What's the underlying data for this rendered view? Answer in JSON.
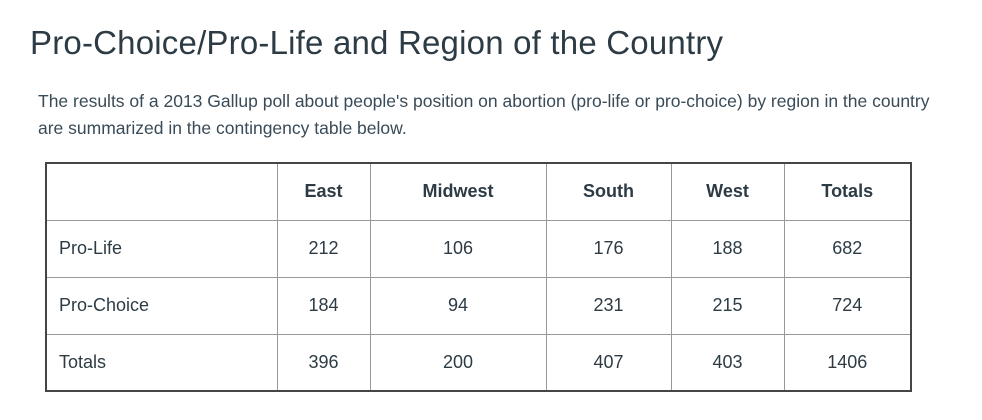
{
  "page": {
    "title": "Pro-Choice/Pro-Life and Region of the Country",
    "description": "The results of a 2013 Gallup poll about people's position on abortion (pro-life or pro-choice) by region in the country are summarized in the contingency table below."
  },
  "colors": {
    "heading": "#2D3B45",
    "body_text": "#394B58",
    "table_text": "#2D3B45",
    "table_outer_border": "#454545",
    "table_inner_border": "#999999",
    "page_bg": "#FFFFFF"
  },
  "table": {
    "columns": [
      "",
      "East",
      "Midwest",
      "South",
      "West",
      "Totals"
    ],
    "rows": [
      {
        "label": "Pro-Life",
        "values": [
          212,
          106,
          176,
          188,
          682
        ]
      },
      {
        "label": "Pro-Choice",
        "values": [
          184,
          94,
          231,
          215,
          724
        ]
      },
      {
        "label": "Totals",
        "values": [
          396,
          200,
          407,
          403,
          1406
        ]
      }
    ]
  }
}
